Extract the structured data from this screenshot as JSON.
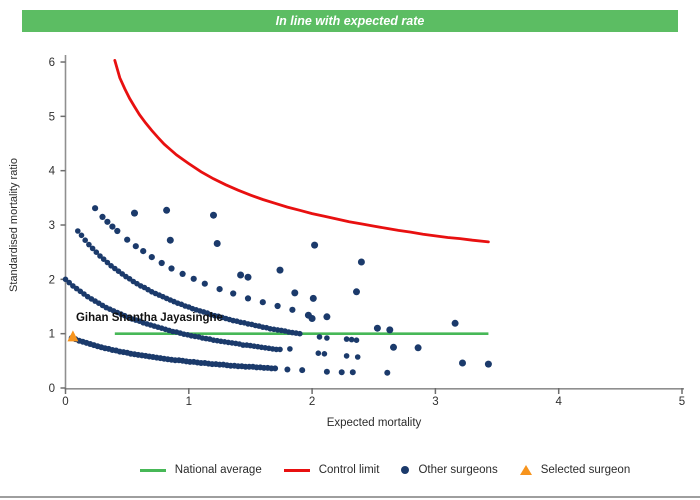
{
  "header": {
    "status_label": "In line with expected rate",
    "status_color": "#5cbd63"
  },
  "chart_data": {
    "type": "scatter",
    "title": "",
    "xlabel": "Expected mortality",
    "ylabel": "Standardised mortality ratio",
    "xlim": [
      0,
      5
    ],
    "ylim": [
      0,
      6
    ],
    "x_ticks": [
      0,
      1,
      2,
      3,
      4,
      5
    ],
    "y_ticks": [
      0,
      1,
      2,
      3,
      4,
      5,
      6
    ],
    "grid": "off",
    "legend_position": "bottom",
    "national_average": {
      "y": 1.0,
      "x_start": 0.4,
      "x_end": 3.43,
      "color": "#47b857"
    },
    "control_limit": {
      "color": "#e81010",
      "points": [
        [
          0.4,
          6.03
        ],
        [
          0.44,
          5.71
        ],
        [
          0.48,
          5.51
        ],
        [
          0.52,
          5.33
        ],
        [
          0.56,
          5.18
        ],
        [
          0.6,
          5.03
        ],
        [
          0.65,
          4.88
        ],
        [
          0.7,
          4.74
        ],
        [
          0.75,
          4.61
        ],
        [
          0.8,
          4.49
        ],
        [
          0.85,
          4.39
        ],
        [
          0.9,
          4.29
        ],
        [
          0.95,
          4.21
        ],
        [
          1.0,
          4.13
        ],
        [
          1.1,
          3.98
        ],
        [
          1.2,
          3.85
        ],
        [
          1.3,
          3.74
        ],
        [
          1.4,
          3.64
        ],
        [
          1.5,
          3.55
        ],
        [
          1.6,
          3.47
        ],
        [
          1.7,
          3.4
        ],
        [
          1.8,
          3.33
        ],
        [
          1.9,
          3.27
        ],
        [
          2.0,
          3.21
        ],
        [
          2.1,
          3.16
        ],
        [
          2.2,
          3.11
        ],
        [
          2.3,
          3.06
        ],
        [
          2.4,
          3.02
        ],
        [
          2.5,
          2.98
        ],
        [
          2.6,
          2.94
        ],
        [
          2.7,
          2.9
        ],
        [
          2.8,
          2.87
        ],
        [
          2.9,
          2.83
        ],
        [
          3.0,
          2.8
        ],
        [
          3.1,
          2.77
        ],
        [
          3.2,
          2.75
        ],
        [
          3.3,
          2.72
        ],
        [
          3.43,
          2.69
        ]
      ]
    },
    "other_surgeons": {
      "color": "#1b3a6b",
      "bands": [
        {
          "name": "band-lowest",
          "dot_r": 3.0,
          "points": [
            [
              0.05,
              0.92
            ],
            [
              0.08,
              0.9
            ],
            [
              0.11,
              0.87
            ],
            [
              0.14,
              0.85
            ],
            [
              0.17,
              0.83
            ],
            [
              0.2,
              0.81
            ],
            [
              0.23,
              0.79
            ],
            [
              0.26,
              0.77
            ],
            [
              0.29,
              0.75
            ],
            [
              0.32,
              0.73
            ],
            [
              0.35,
              0.72
            ],
            [
              0.38,
              0.7
            ],
            [
              0.41,
              0.69
            ],
            [
              0.44,
              0.67
            ],
            [
              0.47,
              0.66
            ],
            [
              0.5,
              0.65
            ],
            [
              0.53,
              0.63
            ],
            [
              0.56,
              0.62
            ],
            [
              0.59,
              0.61
            ],
            [
              0.62,
              0.6
            ],
            [
              0.65,
              0.59
            ],
            [
              0.68,
              0.58
            ],
            [
              0.71,
              0.57
            ],
            [
              0.74,
              0.56
            ],
            [
              0.77,
              0.55
            ],
            [
              0.8,
              0.54
            ],
            [
              0.83,
              0.53
            ],
            [
              0.86,
              0.52
            ],
            [
              0.89,
              0.51
            ],
            [
              0.92,
              0.51
            ],
            [
              0.95,
              0.5
            ],
            [
              0.98,
              0.49
            ],
            [
              1.01,
              0.48
            ],
            [
              1.04,
              0.48
            ],
            [
              1.07,
              0.47
            ],
            [
              1.1,
              0.46
            ],
            [
              1.13,
              0.46
            ],
            [
              1.16,
              0.45
            ],
            [
              1.19,
              0.44
            ],
            [
              1.22,
              0.44
            ],
            [
              1.25,
              0.43
            ],
            [
              1.28,
              0.43
            ],
            [
              1.31,
              0.42
            ],
            [
              1.34,
              0.41
            ],
            [
              1.37,
              0.41
            ],
            [
              1.4,
              0.4
            ],
            [
              1.43,
              0.4
            ],
            [
              1.46,
              0.39
            ],
            [
              1.49,
              0.39
            ],
            [
              1.52,
              0.39
            ],
            [
              1.55,
              0.38
            ],
            [
              1.58,
              0.38
            ],
            [
              1.61,
              0.37
            ],
            [
              1.64,
              0.37
            ],
            [
              1.67,
              0.36
            ],
            [
              1.7,
              0.36
            ],
            [
              1.8,
              0.34
            ],
            [
              1.92,
              0.33
            ],
            [
              2.12,
              0.3
            ],
            [
              2.24,
              0.29
            ],
            [
              2.33,
              0.29
            ],
            [
              2.61,
              0.28
            ]
          ]
        },
        {
          "name": "band-second",
          "dot_r": 2.8,
          "points": [
            [
              0.0,
              2.0
            ],
            [
              0.03,
              1.94
            ],
            [
              0.06,
              1.88
            ],
            [
              0.09,
              1.83
            ],
            [
              0.12,
              1.78
            ],
            [
              0.15,
              1.73
            ],
            [
              0.18,
              1.68
            ],
            [
              0.21,
              1.64
            ],
            [
              0.24,
              1.6
            ],
            [
              0.27,
              1.56
            ],
            [
              0.3,
              1.52
            ],
            [
              0.33,
              1.48
            ],
            [
              0.36,
              1.45
            ],
            [
              0.39,
              1.42
            ],
            [
              0.42,
              1.39
            ],
            [
              0.45,
              1.36
            ],
            [
              0.48,
              1.33
            ],
            [
              0.51,
              1.3
            ],
            [
              0.54,
              1.27
            ],
            [
              0.57,
              1.25
            ],
            [
              0.6,
              1.23
            ],
            [
              0.63,
              1.2
            ],
            [
              0.66,
              1.18
            ],
            [
              0.69,
              1.16
            ],
            [
              0.72,
              1.14
            ],
            [
              0.75,
              1.12
            ],
            [
              0.78,
              1.1
            ],
            [
              0.81,
              1.08
            ],
            [
              0.84,
              1.06
            ],
            [
              0.87,
              1.04
            ],
            [
              0.9,
              1.03
            ],
            [
              0.93,
              1.01
            ],
            [
              0.96,
              0.99
            ],
            [
              0.99,
              0.98
            ],
            [
              1.02,
              0.96
            ],
            [
              1.05,
              0.95
            ],
            [
              1.08,
              0.94
            ],
            [
              1.11,
              0.92
            ],
            [
              1.14,
              0.91
            ],
            [
              1.17,
              0.9
            ],
            [
              1.2,
              0.88
            ],
            [
              1.23,
              0.87
            ],
            [
              1.26,
              0.86
            ],
            [
              1.29,
              0.85
            ],
            [
              1.32,
              0.84
            ],
            [
              1.35,
              0.83
            ],
            [
              1.38,
              0.82
            ],
            [
              1.41,
              0.81
            ],
            [
              1.44,
              0.79
            ],
            [
              1.47,
              0.79
            ],
            [
              1.5,
              0.78
            ],
            [
              1.53,
              0.77
            ],
            [
              1.56,
              0.76
            ],
            [
              1.59,
              0.75
            ],
            [
              1.62,
              0.74
            ],
            [
              1.65,
              0.73
            ],
            [
              1.68,
              0.72
            ],
            [
              1.71,
              0.71
            ],
            [
              1.74,
              0.71
            ],
            [
              1.82,
              0.72
            ],
            [
              2.05,
              0.64
            ],
            [
              2.1,
              0.63
            ],
            [
              2.28,
              0.59
            ],
            [
              2.37,
              0.57
            ]
          ]
        },
        {
          "name": "band-third",
          "dot_r": 2.8,
          "points": [
            [
              0.1,
              2.89
            ],
            [
              0.13,
              2.81
            ],
            [
              0.16,
              2.72
            ],
            [
              0.19,
              2.64
            ],
            [
              0.22,
              2.57
            ],
            [
              0.25,
              2.5
            ],
            [
              0.28,
              2.43
            ],
            [
              0.31,
              2.37
            ],
            [
              0.34,
              2.31
            ],
            [
              0.37,
              2.25
            ],
            [
              0.4,
              2.2
            ],
            [
              0.43,
              2.15
            ],
            [
              0.46,
              2.1
            ],
            [
              0.49,
              2.05
            ],
            [
              0.52,
              2.01
            ],
            [
              0.55,
              1.96
            ],
            [
              0.58,
              1.92
            ],
            [
              0.61,
              1.88
            ],
            [
              0.64,
              1.85
            ],
            [
              0.67,
              1.81
            ],
            [
              0.7,
              1.77
            ],
            [
              0.73,
              1.74
            ],
            [
              0.76,
              1.71
            ],
            [
              0.79,
              1.68
            ],
            [
              0.82,
              1.65
            ],
            [
              0.85,
              1.62
            ],
            [
              0.88,
              1.59
            ],
            [
              0.91,
              1.56
            ],
            [
              0.94,
              1.54
            ],
            [
              0.97,
              1.51
            ],
            [
              1.0,
              1.49
            ],
            [
              1.03,
              1.46
            ],
            [
              1.06,
              1.44
            ],
            [
              1.09,
              1.42
            ],
            [
              1.12,
              1.4
            ],
            [
              1.15,
              1.38
            ],
            [
              1.18,
              1.35
            ],
            [
              1.21,
              1.33
            ],
            [
              1.24,
              1.32
            ],
            [
              1.27,
              1.3
            ],
            [
              1.3,
              1.28
            ],
            [
              1.33,
              1.26
            ],
            [
              1.36,
              1.24
            ],
            [
              1.39,
              1.23
            ],
            [
              1.42,
              1.21
            ],
            [
              1.45,
              1.2
            ],
            [
              1.48,
              1.18
            ],
            [
              1.51,
              1.17
            ],
            [
              1.54,
              1.15
            ],
            [
              1.57,
              1.14
            ],
            [
              1.6,
              1.12
            ],
            [
              1.63,
              1.11
            ],
            [
              1.66,
              1.09
            ],
            [
              1.69,
              1.08
            ],
            [
              1.72,
              1.07
            ],
            [
              1.75,
              1.06
            ],
            [
              1.78,
              1.05
            ],
            [
              1.81,
              1.03
            ],
            [
              1.84,
              1.02
            ],
            [
              1.87,
              1.01
            ],
            [
              1.9,
              1.0
            ],
            [
              2.06,
              0.94
            ],
            [
              2.12,
              0.92
            ],
            [
              2.28,
              0.9
            ],
            [
              2.32,
              0.89
            ],
            [
              2.36,
              0.88
            ]
          ]
        },
        {
          "name": "band-top-sparse",
          "dot_r": 3.1,
          "points": [
            [
              0.24,
              3.31
            ],
            [
              0.3,
              3.15
            ],
            [
              0.34,
              3.06
            ],
            [
              0.38,
              2.97
            ],
            [
              0.42,
              2.89
            ],
            [
              0.5,
              2.73
            ],
            [
              0.57,
              2.61
            ],
            [
              0.63,
              2.52
            ],
            [
              0.7,
              2.41
            ],
            [
              0.78,
              2.3
            ],
            [
              0.86,
              2.2
            ],
            [
              0.95,
              2.1
            ],
            [
              1.04,
              2.01
            ],
            [
              1.13,
              1.92
            ],
            [
              1.25,
              1.82
            ],
            [
              1.36,
              1.74
            ],
            [
              1.48,
              1.65
            ],
            [
              1.6,
              1.58
            ],
            [
              1.72,
              1.51
            ],
            [
              1.84,
              1.44
            ]
          ]
        }
      ],
      "scatter": [
        [
          0.56,
          3.22
        ],
        [
          0.82,
          3.27
        ],
        [
          0.85,
          2.72
        ],
        [
          1.2,
          3.18
        ],
        [
          1.23,
          2.66
        ],
        [
          1.42,
          2.08
        ],
        [
          1.48,
          2.04
        ],
        [
          1.74,
          2.17
        ],
        [
          1.86,
          1.75
        ],
        [
          1.97,
          1.34
        ],
        [
          2.0,
          1.28
        ],
        [
          2.01,
          1.65
        ],
        [
          2.02,
          2.63
        ],
        [
          2.12,
          1.31
        ],
        [
          2.36,
          1.77
        ],
        [
          2.4,
          2.32
        ],
        [
          2.53,
          1.1
        ],
        [
          2.63,
          1.07
        ],
        [
          2.66,
          0.75
        ],
        [
          2.86,
          0.74
        ],
        [
          3.16,
          1.19
        ],
        [
          3.22,
          0.46
        ],
        [
          3.43,
          0.44
        ]
      ]
    },
    "selected_surgeon": {
      "label": "Gihan Shantha Jayasinghe",
      "color": "#f7941d",
      "x": 0.06,
      "y": 0.94,
      "label_x": 0.085,
      "label_y": 1.23
    }
  },
  "legend": {
    "items": [
      {
        "label": "National average",
        "type": "line",
        "color": "#47b857"
      },
      {
        "label": "Control limit",
        "type": "line",
        "color": "#e81010"
      },
      {
        "label": "Other surgeons",
        "type": "dot",
        "color": "#1b3a6b"
      },
      {
        "label": "Selected surgeon",
        "type": "triangle",
        "color": "#f7941d"
      }
    ]
  }
}
